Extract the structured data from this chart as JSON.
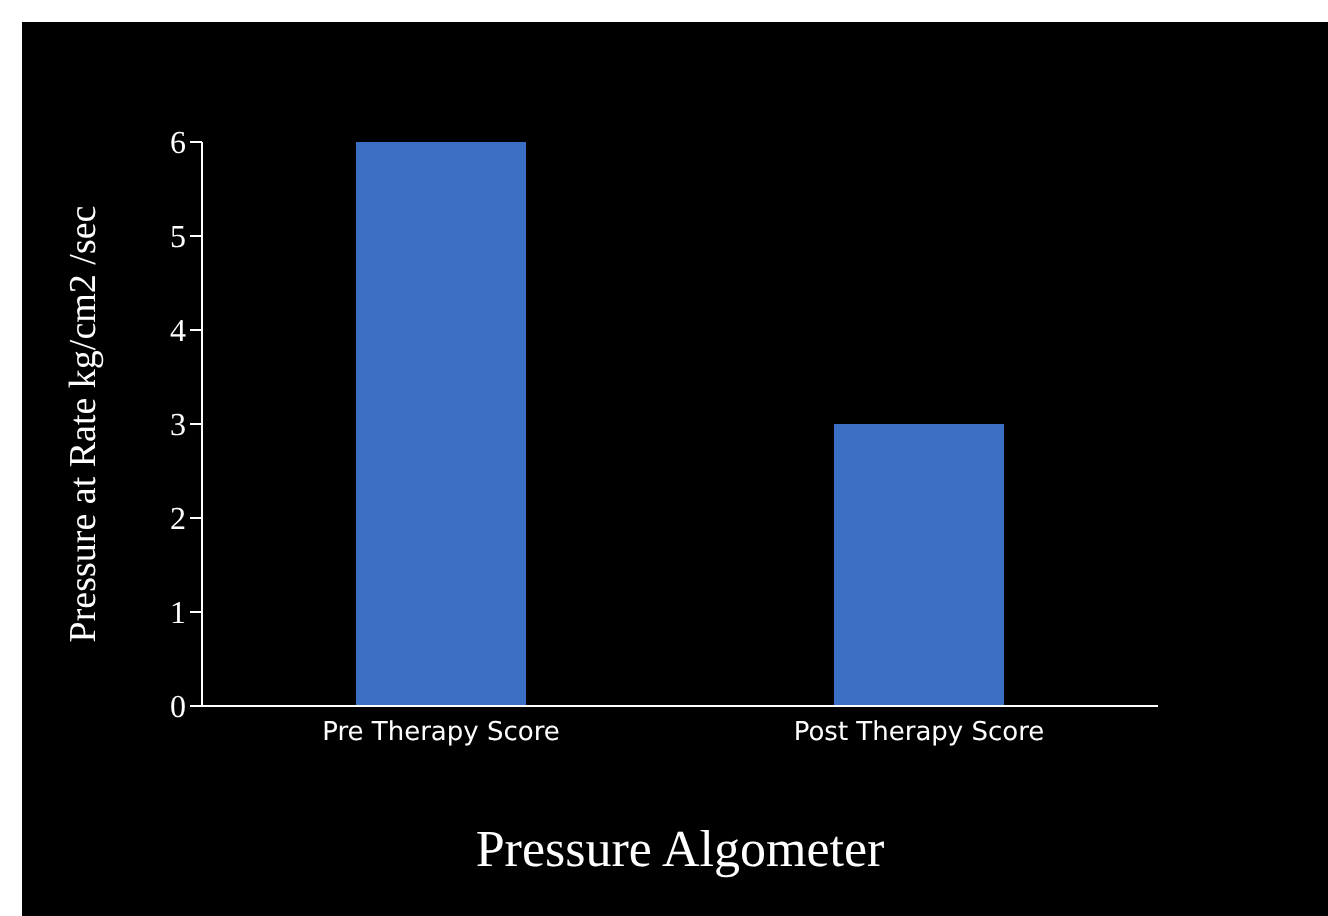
{
  "chart_data": {
    "type": "bar",
    "xlabel": "Pressure  Algometer",
    "ylabel": "Pressure at Rate kg/cm2 /sec",
    "categories": [
      "Pre Therapy Score",
      "Post Therapy Score"
    ],
    "values": [
      6,
      3
    ],
    "color": "#3a6fc4",
    "ylim": [
      0,
      6
    ],
    "yticks": [
      0,
      1,
      2,
      3,
      4,
      5,
      6
    ],
    "grid": false,
    "legend": false
  }
}
